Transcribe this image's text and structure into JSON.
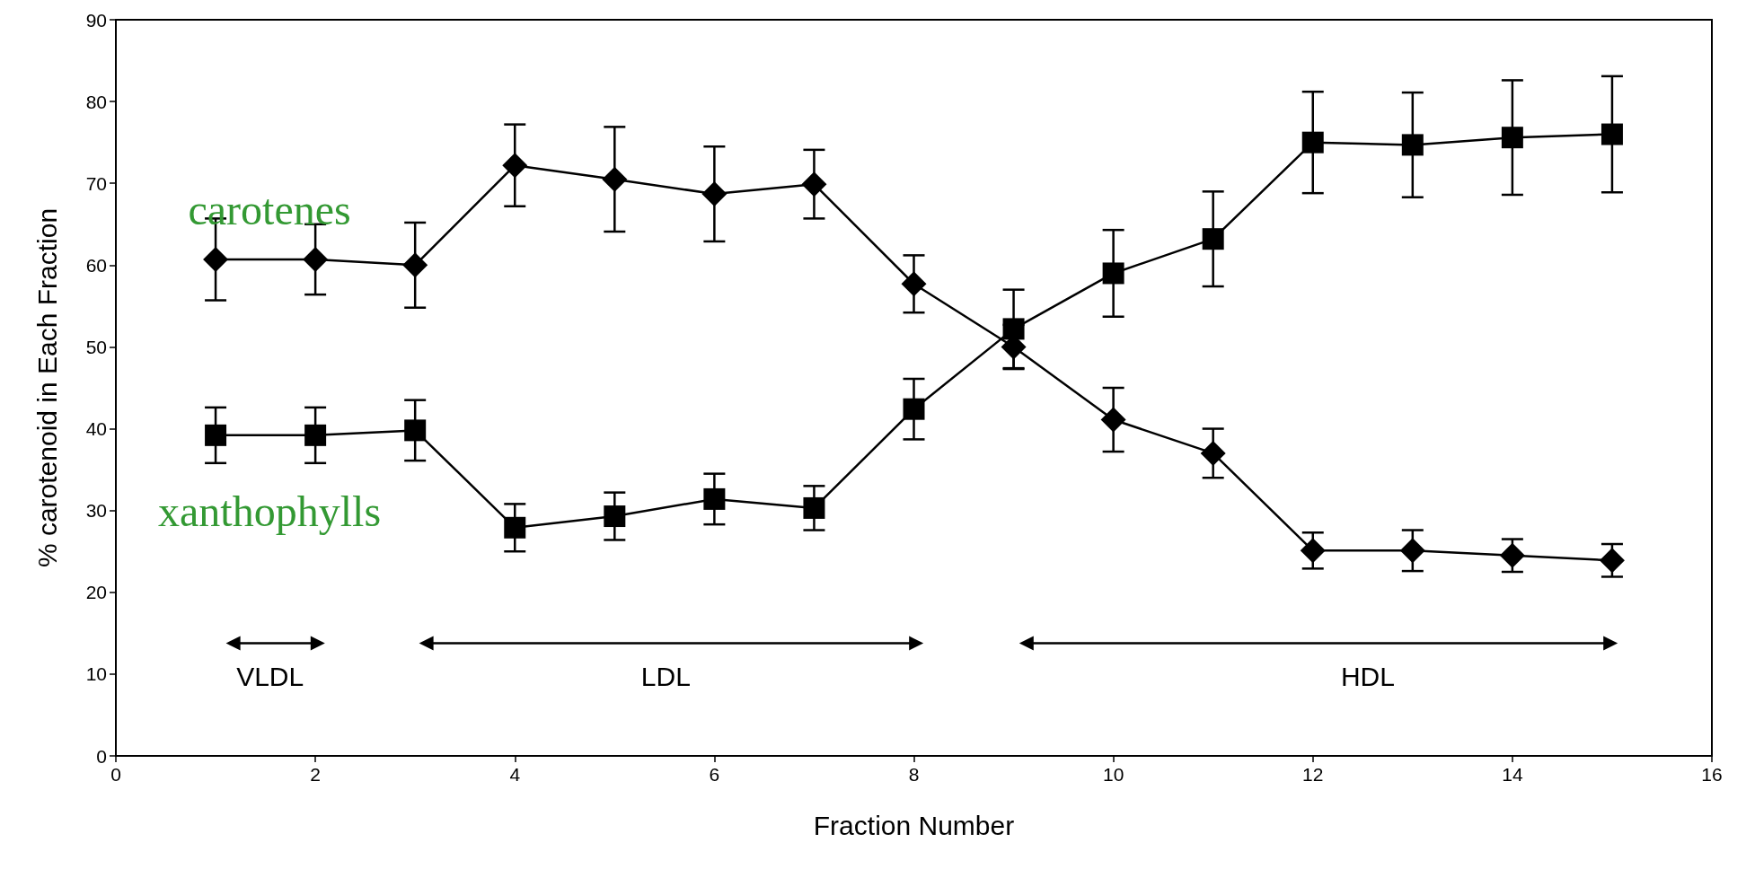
{
  "chart_data": {
    "type": "line",
    "xlabel": "Fraction Number",
    "ylabel": "% carotenoid in Each Fraction",
    "x": [
      1,
      2,
      3,
      4,
      5,
      6,
      7,
      8,
      9,
      10,
      11,
      12,
      13,
      14,
      15
    ],
    "series": [
      {
        "name": "carotenes",
        "color": "#000000",
        "marker": "diamond",
        "values": [
          60.7,
          60.7,
          60,
          72.2,
          70.5,
          68.7,
          69.9,
          57.7,
          50,
          41.1,
          37,
          25.1,
          25.1,
          24.5,
          23.9
        ],
        "errors": [
          5,
          4.3,
          5.2,
          5,
          6.4,
          5.8,
          4.2,
          3.5,
          2.7,
          3.9,
          3,
          2.2,
          2.5,
          2,
          2
        ]
      },
      {
        "name": "xanthophylls",
        "color": "#000000",
        "marker": "square",
        "values": [
          39.2,
          39.2,
          39.8,
          27.9,
          29.3,
          31.4,
          30.3,
          42.4,
          52.2,
          59,
          63.2,
          75,
          74.7,
          75.6,
          76
        ],
        "errors": [
          3.4,
          3.4,
          3.7,
          2.9,
          2.9,
          3.1,
          2.7,
          3.7,
          4.8,
          5.3,
          5.8,
          6.2,
          6.4,
          7,
          7.1
        ]
      }
    ],
    "annotations": [
      "VLDL",
      "LDL",
      "HDL"
    ],
    "xlim": [
      0,
      16
    ],
    "xticks": [
      0,
      2,
      4,
      6,
      8,
      10,
      12,
      14,
      16
    ],
    "ylim": [
      0,
      90
    ],
    "yticks": [
      0,
      10,
      20,
      30,
      40,
      50,
      60,
      70,
      80,
      90
    ],
    "grid": false,
    "legend": "left",
    "line_style": "solid"
  }
}
